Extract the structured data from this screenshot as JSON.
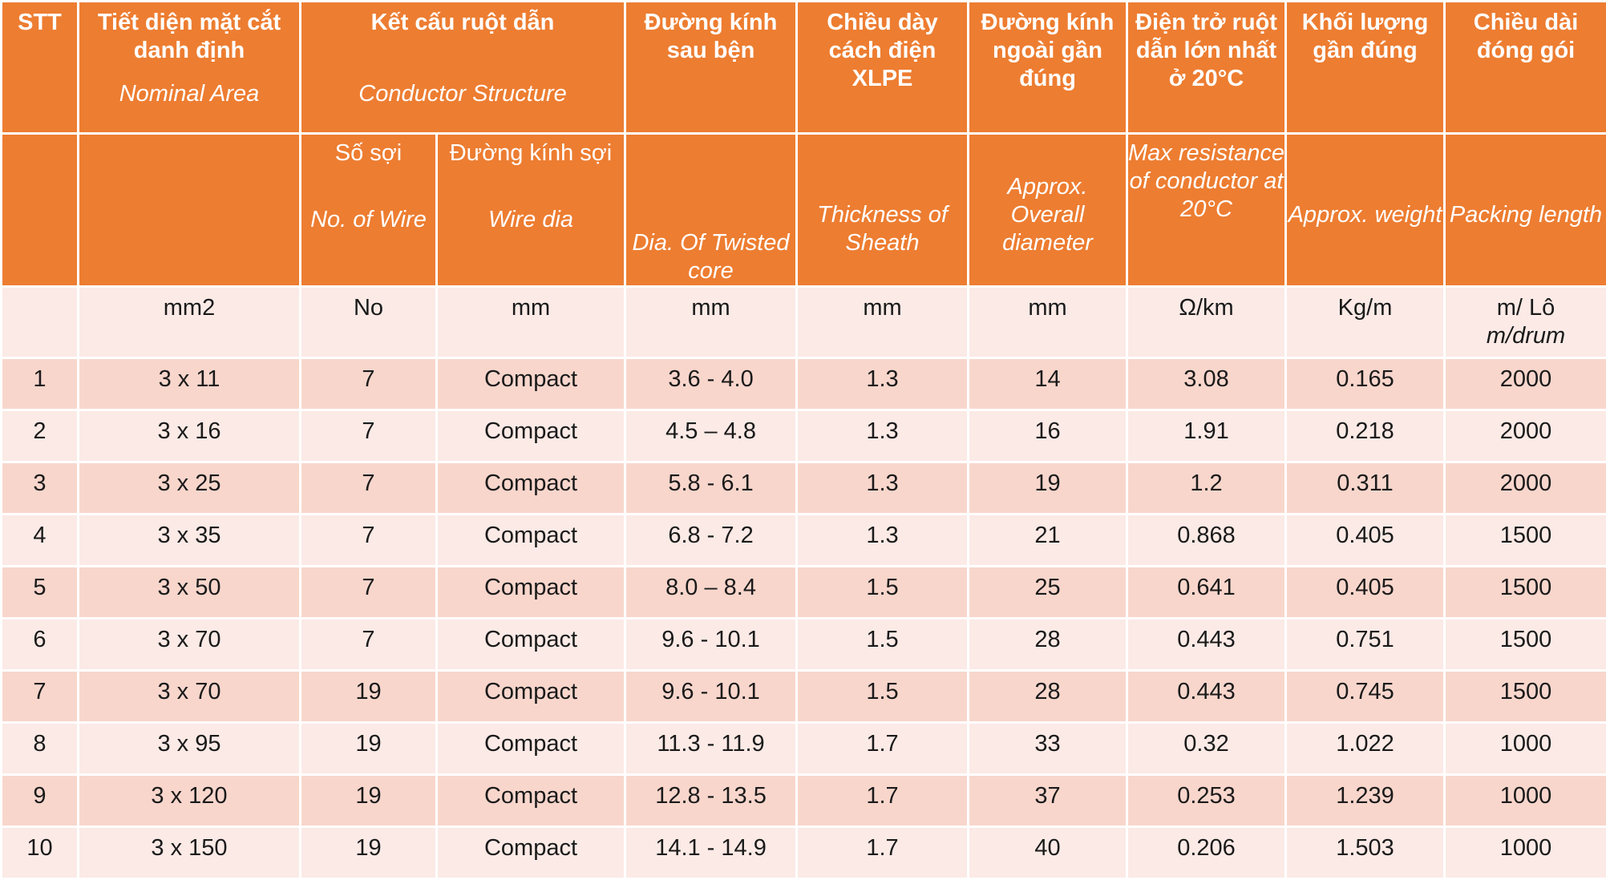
{
  "header_row1": [
    {
      "bold": "STT",
      "italic": ""
    },
    {
      "bold": "Tiết diện mặt cắt danh định",
      "italic": "Nominal Area"
    },
    {
      "bold": "Kết cấu ruột dẫn",
      "italic": "Conductor Structure"
    },
    {
      "bold": "Đường kính sau bện",
      "italic": ""
    },
    {
      "bold": "Chiều dày cách điện XLPE",
      "italic": ""
    },
    {
      "bold": "Đường kính ngoài gần đúng",
      "italic": ""
    },
    {
      "bold": "Điện trở ruột dẫn lớn nhất ở 20°C",
      "italic": ""
    },
    {
      "bold": "Khối lượng gần đúng",
      "italic": ""
    },
    {
      "bold": "Chiều dài đóng gói",
      "italic": ""
    }
  ],
  "header_row2": {
    "no_of_wire": {
      "vi": "Số sợi",
      "en": "No. of Wire"
    },
    "wire_dia": {
      "vi": "Đường kính sợi",
      "en": "Wire dia"
    },
    "twisted_core": "Dia. Of Twisted core",
    "thickness": "Thickness of Sheath",
    "overall_dia": "Approx. Overall diameter",
    "max_resistance": "Max resistance of conductor at 20°C",
    "weight": "Approx. weight",
    "packing": "Packing length"
  },
  "units": [
    "",
    "mm2",
    "No",
    "mm",
    "mm",
    "mm",
    "mm",
    "Ω/km",
    "Kg/m",
    "m/ Lô"
  ],
  "units_extra": "m/drum",
  "rows": [
    [
      "1",
      "3 x 11",
      "7",
      "Compact",
      "3.6 - 4.0",
      "1.3",
      "14",
      "3.08",
      "0.165",
      "2000"
    ],
    [
      "2",
      "3 x 16",
      "7",
      "Compact",
      "4.5 – 4.8",
      "1.3",
      "16",
      "1.91",
      "0.218",
      "2000"
    ],
    [
      "3",
      "3 x 25",
      "7",
      "Compact",
      "5.8 - 6.1",
      "1.3",
      "19",
      "1.2",
      "0.311",
      "2000"
    ],
    [
      "4",
      "3 x 35",
      "7",
      "Compact",
      "6.8 - 7.2",
      "1.3",
      "21",
      "0.868",
      "0.405",
      "1500"
    ],
    [
      "5",
      "3 x 50",
      "7",
      "Compact",
      "8.0 – 8.4",
      "1.5",
      "25",
      "0.641",
      "0.405",
      "1500"
    ],
    [
      "6",
      "3 x 70",
      "7",
      "Compact",
      "9.6 - 10.1",
      "1.5",
      "28",
      "0.443",
      "0.751",
      "1500"
    ],
    [
      "7",
      "3 x 70",
      "19",
      "Compact",
      "9.6 - 10.1",
      "1.5",
      "28",
      "0.443",
      "0.745",
      "1500"
    ],
    [
      "8",
      "3 x 95",
      "19",
      "Compact",
      "11.3 - 11.9",
      "1.7",
      "33",
      "0.32",
      "1.022",
      "1000"
    ],
    [
      "9",
      "3 x 120",
      "19",
      "Compact",
      "12.8 - 13.5",
      "1.7",
      "37",
      "0.253",
      "1.239",
      "1000"
    ],
    [
      "10",
      "3 x 150",
      "19",
      "Compact",
      "14.1 - 14.9",
      "1.7",
      "40",
      "0.206",
      "1.503",
      "1000"
    ]
  ]
}
